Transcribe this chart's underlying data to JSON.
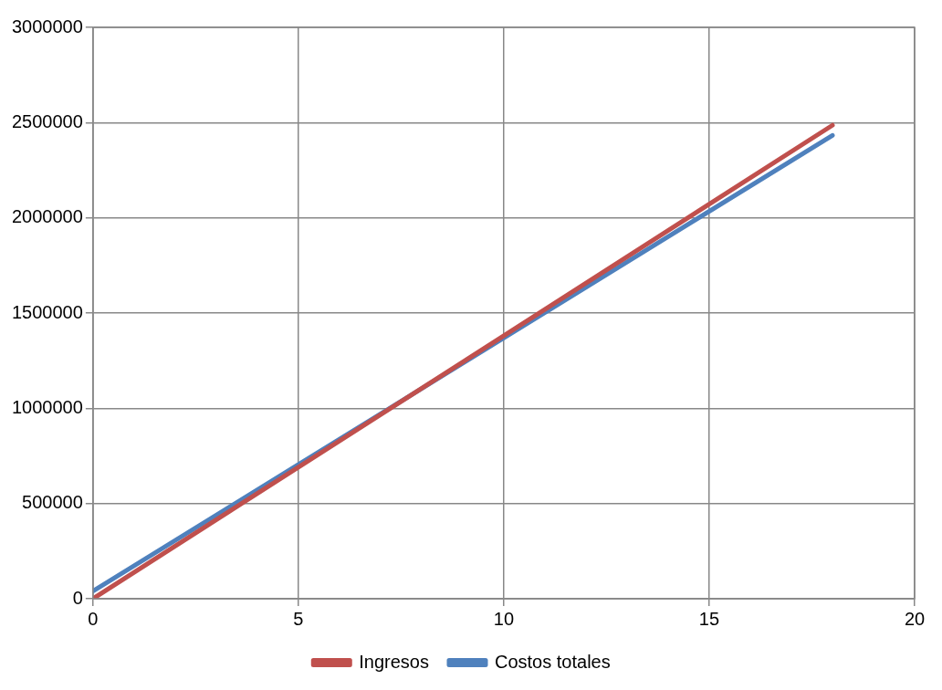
{
  "chart_data": {
    "type": "line",
    "xlim": [
      0,
      20
    ],
    "xticks": [
      0,
      5,
      10,
      15,
      20
    ],
    "ylim": [
      0,
      3000000
    ],
    "yticks": [
      0,
      500000,
      1000000,
      1500000,
      2000000,
      2500000,
      3000000
    ],
    "x": [
      0,
      18
    ],
    "grid": true,
    "legend": "bottom",
    "marker": "none",
    "line_style": "solid",
    "series": [
      {
        "name": "Ingresos",
        "color": "#c0504d",
        "values": [
          0,
          2486000
        ]
      },
      {
        "name": "Costos totales",
        "color": "#4f81bd",
        "values": [
          40000,
          2433000
        ]
      }
    ]
  }
}
